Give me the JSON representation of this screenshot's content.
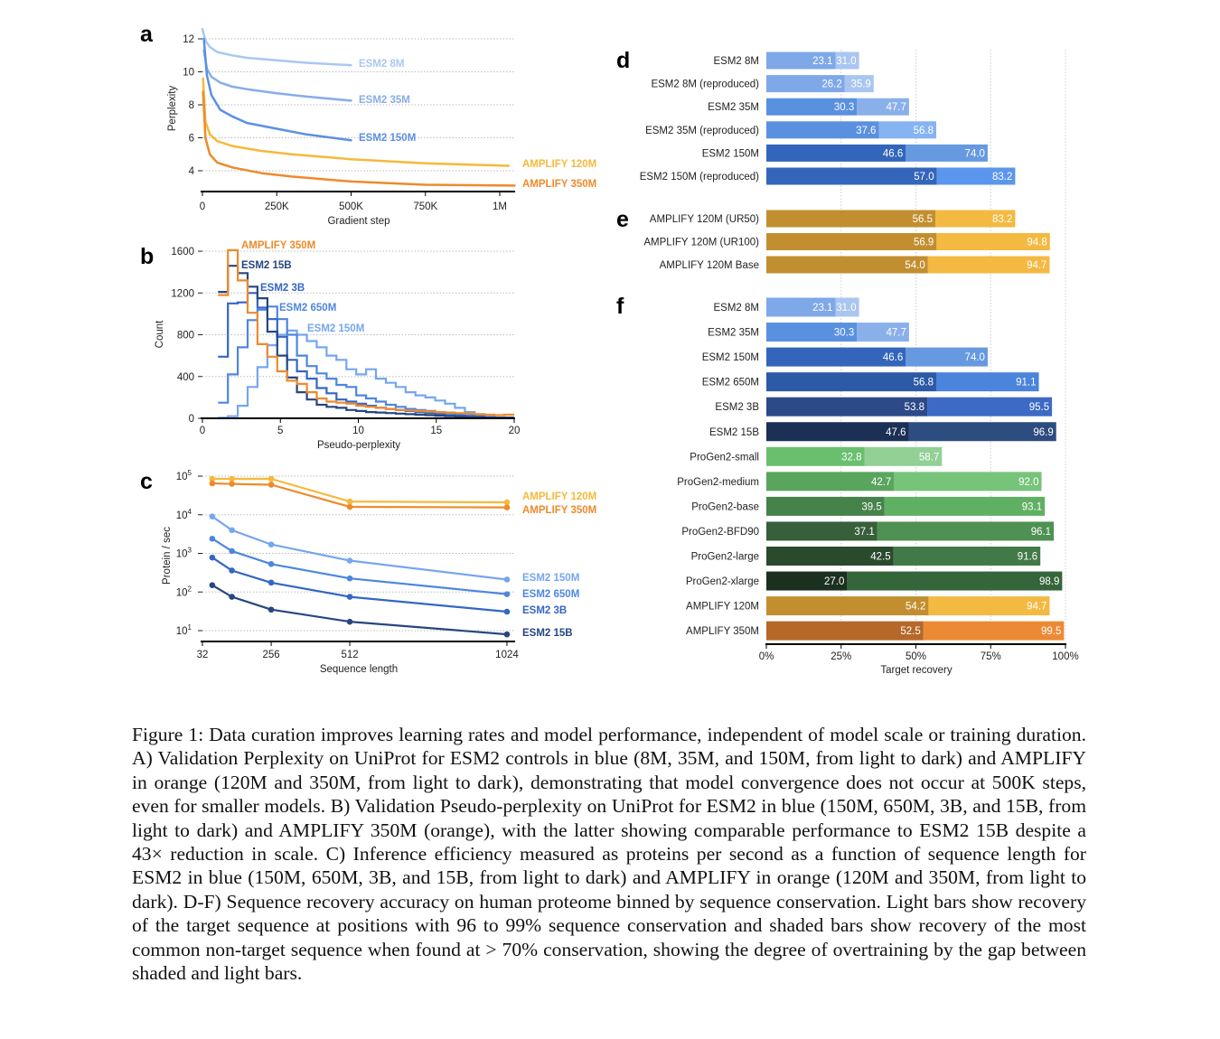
{
  "panel_letters": [
    "a",
    "b",
    "c",
    "d",
    "e",
    "f"
  ],
  "caption": "Figure 1: Data curation improves learning rates and model performance, independent of model scale or training duration. A) Validation Perplexity on UniProt for ESM2 controls in blue (8M, 35M, and 150M, from light to dark) and AMPLIFY in orange (120M and 350M, from light to dark), demonstrating that model convergence does not occur at 500K steps, even for smaller models. B) Validation Pseudo-perplexity on UniProt for ESM2 in blue (150M, 650M, 3B, and 15B, from light to dark) and AMPLIFY 350M (orange), with the latter showing comparable performance to ESM2 15B despite a 43× reduction in scale. C) Inference efficiency measured as proteins per second as a function of sequence length for ESM2 in blue (150M, 650M, 3B, and 15B, from light to dark) and AMPLIFY in orange (120M and 350M, from light to dark). D-F) Sequence recovery accuracy on human proteome binned by sequence conservation. Light bars show recovery of the target sequence at positions with 96 to 99% sequence conservation and shaded bars show recovery of the most common non-target sequence when found at > 70% conservation, showing the degree of overtraining by the gap between shaded and light bars.",
  "chart_data": [
    {
      "panel": "a",
      "type": "line",
      "xlabel": "Gradient step",
      "ylabel": "Perplexity",
      "xlim": [
        0,
        1000
      ],
      "ylim": [
        4,
        12
      ],
      "x_units": "K steps",
      "xticks": [
        0,
        250,
        500,
        750,
        1000
      ],
      "xtick_labels": [
        "0",
        "250K",
        "500K",
        "750K",
        "1M"
      ],
      "yticks": [
        4,
        6,
        8,
        10,
        12
      ],
      "ytick_labels": [
        "4",
        "6",
        "8",
        "10",
        "12"
      ],
      "grid": true,
      "series": [
        {
          "name": "ESM2 8M",
          "color": "#a9c8f2",
          "points": [
            [
              0,
              12.6
            ],
            [
              10,
              11.9
            ],
            [
              25,
              11.5
            ],
            [
              50,
              11.2
            ],
            [
              100,
              11.0
            ],
            [
              150,
              10.85
            ],
            [
              250,
              10.7
            ],
            [
              350,
              10.55
            ],
            [
              500,
              10.4
            ]
          ]
        },
        {
          "name": "ESM2 35M",
          "color": "#86adea",
          "points": [
            [
              5,
              11.3
            ],
            [
              15,
              10.2
            ],
            [
              30,
              9.7
            ],
            [
              60,
              9.35
            ],
            [
              100,
              9.1
            ],
            [
              150,
              8.95
            ],
            [
              250,
              8.7
            ],
            [
              350,
              8.5
            ],
            [
              500,
              8.25
            ]
          ]
        },
        {
          "name": "ESM2 150M",
          "color": "#5b8fe3",
          "points": [
            [
              5,
              12.0
            ],
            [
              15,
              9.8
            ],
            [
              30,
              8.6
            ],
            [
              60,
              7.7
            ],
            [
              100,
              7.3
            ],
            [
              150,
              6.9
            ],
            [
              250,
              6.55
            ],
            [
              350,
              6.2
            ],
            [
              500,
              5.85
            ]
          ]
        },
        {
          "name": "AMPLIFY 120M",
          "color": "#f6b93b",
          "points": [
            [
              2,
              9.6
            ],
            [
              10,
              7.0
            ],
            [
              25,
              6.2
            ],
            [
              50,
              5.8
            ],
            [
              100,
              5.5
            ],
            [
              200,
              5.2
            ],
            [
              300,
              5.0
            ],
            [
              500,
              4.7
            ],
            [
              750,
              4.45
            ],
            [
              1030,
              4.3
            ]
          ]
        },
        {
          "name": "AMPLIFY 350M",
          "color": "#ee8a2c",
          "points": [
            [
              2,
              8.8
            ],
            [
              10,
              6.0
            ],
            [
              25,
              5.0
            ],
            [
              50,
              4.5
            ],
            [
              100,
              4.2
            ],
            [
              200,
              3.85
            ],
            [
              300,
              3.65
            ],
            [
              500,
              3.35
            ],
            [
              750,
              3.15
            ],
            [
              1050,
              3.1
            ]
          ]
        }
      ]
    },
    {
      "panel": "b",
      "type": "histogram",
      "xlabel": "Pseudo-perplexity",
      "ylabel": "Count",
      "xlim": [
        0,
        20
      ],
      "ylim": [
        0,
        1600
      ],
      "xticks": [
        0,
        5,
        10,
        15,
        20
      ],
      "yticks": [
        0,
        400,
        800,
        1200,
        1600
      ],
      "grid": true,
      "bin_start": 1.0,
      "bin_width": 0.6333,
      "series": [
        {
          "name": "ESM2 150M",
          "color": "#76a6ee",
          "counts": [
            5,
            20,
            120,
            300,
            490,
            700,
            800,
            840,
            800,
            740,
            680,
            600,
            560,
            470,
            420,
            470,
            380,
            340,
            300,
            250,
            220,
            200,
            170,
            140,
            100,
            60,
            30,
            15,
            5,
            5
          ]
        },
        {
          "name": "ESM2 650M",
          "color": "#4d86e0",
          "counts": [
            150,
            420,
            680,
            940,
            1040,
            1070,
            950,
            800,
            600,
            500,
            430,
            380,
            320,
            300,
            220,
            190,
            160,
            130,
            110,
            90,
            80,
            70,
            60,
            50,
            40,
            30,
            20,
            10,
            5,
            5
          ]
        },
        {
          "name": "ESM2 3B",
          "color": "#3366c4",
          "counts": [
            590,
            1100,
            1110,
            1200,
            1060,
            950,
            780,
            560,
            450,
            380,
            290,
            240,
            180,
            160,
            140,
            120,
            100,
            90,
            80,
            70,
            60,
            50,
            40,
            30,
            25,
            20,
            15,
            10,
            5,
            5
          ]
        },
        {
          "name": "ESM2 15B",
          "color": "#26467f",
          "counts": [
            1210,
            1460,
            1390,
            1260,
            1150,
            830,
            600,
            390,
            250,
            180,
            130,
            110,
            100,
            80,
            70,
            60,
            55,
            50,
            45,
            40,
            35,
            30,
            25,
            20,
            15,
            10,
            10,
            5,
            5,
            5
          ]
        },
        {
          "name": "AMPLIFY 350M",
          "color": "#ee8a2c",
          "counts": [
            1180,
            1610,
            1320,
            1010,
            710,
            590,
            450,
            360,
            330,
            250,
            190,
            160,
            150,
            140,
            120,
            110,
            100,
            90,
            80,
            75,
            70,
            65,
            60,
            55,
            50,
            45,
            40,
            35,
            30,
            35
          ]
        }
      ]
    },
    {
      "panel": "c",
      "type": "line",
      "yscale": "log",
      "xlabel": "Sequence length",
      "ylabel": "Protein / sec",
      "xlim": [
        32,
        1024
      ],
      "ylim": [
        10,
        100000
      ],
      "xticks": [
        32,
        256,
        512,
        1024
      ],
      "ytick_exponents": [
        1,
        2,
        3,
        4,
        5
      ],
      "ytick_base": "10",
      "grid": true,
      "x": [
        64,
        128,
        256,
        512,
        1024
      ],
      "series": [
        {
          "name": "AMPLIFY 120M",
          "color": "#f6b93b",
          "values": [
            85000,
            85000,
            85000,
            22000,
            21000
          ]
        },
        {
          "name": "AMPLIFY 350M",
          "color": "#ee8a2c",
          "values": [
            65000,
            63000,
            60000,
            16000,
            15500
          ]
        },
        {
          "name": "ESM2 150M",
          "color": "#76a6ee",
          "values": [
            9000,
            4000,
            1700,
            650,
            210
          ]
        },
        {
          "name": "ESM2 650M",
          "color": "#4d86e0",
          "values": [
            2400,
            1150,
            530,
            225,
            88
          ]
        },
        {
          "name": "ESM2 3B",
          "color": "#3366c4",
          "values": [
            780,
            360,
            175,
            75,
            31
          ]
        },
        {
          "name": "ESM2 15B",
          "color": "#26467f",
          "values": [
            150,
            75,
            35,
            17,
            8
          ]
        }
      ]
    },
    {
      "panel": "d",
      "type": "bar",
      "orientation": "horizontal",
      "xlim": [
        0,
        100
      ],
      "rows": [
        {
          "label": "ESM2 8M",
          "shaded": 23.1,
          "light": 31.0,
          "colors": [
            "#7ea8e8",
            "#a9c6f0"
          ]
        },
        {
          "label": "ESM2 8M (reproduced)",
          "shaded": 26.2,
          "light": 35.9,
          "colors": [
            "#7ea8e8",
            "#a9c6f0"
          ]
        },
        {
          "label": "ESM2 35M",
          "shaded": 30.3,
          "light": 47.7,
          "colors": [
            "#5a90e0",
            "#8ab0ea"
          ]
        },
        {
          "label": "ESM2 35M (reproduced)",
          "shaded": 37.6,
          "light": 56.8,
          "colors": [
            "#5a90e0",
            "#86b3f2"
          ]
        },
        {
          "label": "ESM2 150M",
          "shaded": 46.6,
          "light": 74.0,
          "colors": [
            "#3366bb",
            "#6699e0"
          ]
        },
        {
          "label": "ESM2 150M (reproduced)",
          "shaded": 57.0,
          "light": 83.2,
          "colors": [
            "#3366bb",
            "#5b96ee"
          ]
        }
      ]
    },
    {
      "panel": "e",
      "type": "bar",
      "orientation": "horizontal",
      "xlim": [
        0,
        100
      ],
      "rows": [
        {
          "label": "AMPLIFY 120M (UR50)",
          "shaded": 56.5,
          "light": 83.2,
          "colors": [
            "#c28f30",
            "#f3b941"
          ]
        },
        {
          "label": "AMPLIFY 120M (UR100)",
          "shaded": 56.9,
          "light": 94.8,
          "colors": [
            "#c28f30",
            "#f3b941"
          ]
        },
        {
          "label": "AMPLIFY 120M Base",
          "shaded": 54.0,
          "light": 94.7,
          "colors": [
            "#c28f30",
            "#f3b941"
          ]
        }
      ]
    },
    {
      "panel": "f",
      "type": "bar",
      "orientation": "horizontal",
      "xlim": [
        0,
        100
      ],
      "xlabel": "Target recovery",
      "xticks": [
        0,
        25,
        50,
        75,
        100
      ],
      "xtick_labels": [
        "0%",
        "25%",
        "50%",
        "75%",
        "100%"
      ],
      "rows": [
        {
          "label": "ESM2 8M",
          "shaded": 23.1,
          "light": 31.0,
          "colors": [
            "#7ea8e8",
            "#a9c6f0"
          ]
        },
        {
          "label": "ESM2 35M",
          "shaded": 30.3,
          "light": 47.7,
          "colors": [
            "#5a90e0",
            "#8ab0ea"
          ]
        },
        {
          "label": "ESM2 150M",
          "shaded": 46.6,
          "light": 74.0,
          "colors": [
            "#3366bb",
            "#6699e0"
          ]
        },
        {
          "label": "ESM2 650M",
          "shaded": 56.8,
          "light": 91.1,
          "colors": [
            "#2d5aa6",
            "#4a84dc"
          ]
        },
        {
          "label": "ESM2 3B",
          "shaded": 53.8,
          "light": 95.5,
          "colors": [
            "#2c4a88",
            "#3d6ac4"
          ]
        },
        {
          "label": "ESM2 15B",
          "shaded": 47.6,
          "light": 96.9,
          "colors": [
            "#1c2f55",
            "#2d4c80"
          ]
        },
        {
          "label": "ProGen2-small",
          "shaded": 32.8,
          "light": 58.7,
          "colors": [
            "#6abf6e",
            "#93d096"
          ]
        },
        {
          "label": "ProGen2-medium",
          "shaded": 42.7,
          "light": 92.0,
          "colors": [
            "#5aa55e",
            "#76c37a"
          ]
        },
        {
          "label": "ProGen2-base",
          "shaded": 39.5,
          "light": 93.1,
          "colors": [
            "#46834b",
            "#60b064"
          ]
        },
        {
          "label": "ProGen2-BFD90",
          "shaded": 37.1,
          "light": 96.1,
          "colors": [
            "#365f3a",
            "#4e9152"
          ]
        },
        {
          "label": "ProGen2-large",
          "shaded": 42.5,
          "light": 91.6,
          "colors": [
            "#2a4a2e",
            "#427a47"
          ]
        },
        {
          "label": "ProGen2-xlarge",
          "shaded": 27.0,
          "light": 98.9,
          "colors": [
            "#1c301f",
            "#35653a"
          ]
        },
        {
          "label": "AMPLIFY 120M",
          "shaded": 54.2,
          "light": 94.7,
          "colors": [
            "#c28f30",
            "#f3b941"
          ]
        },
        {
          "label": "AMPLIFY 350M",
          "shaded": 52.5,
          "light": 99.5,
          "colors": [
            "#b56827",
            "#ec8a34"
          ]
        }
      ]
    }
  ]
}
